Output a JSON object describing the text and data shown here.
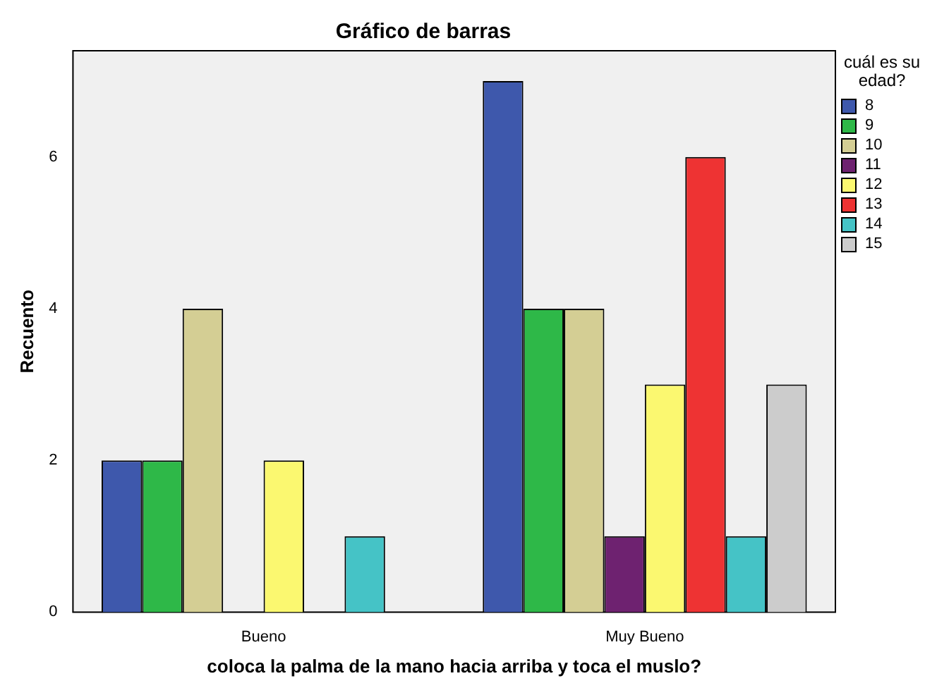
{
  "chart_data": {
    "type": "bar",
    "title": "Gráfico de barras",
    "xlabel": "coloca la palma de la mano hacia arriba y toca el muslo?",
    "ylabel": "Recuento",
    "legend_title": "cuál es su edad?",
    "legend": "right",
    "categories": [
      "Bueno",
      "Muy Bueno"
    ],
    "series": [
      {
        "name": "8",
        "color": "#3e58ac",
        "values": [
          2,
          7
        ]
      },
      {
        "name": "9",
        "color": "#2eb848",
        "values": [
          2,
          4
        ]
      },
      {
        "name": "10",
        "color": "#d4ce94",
        "values": [
          4,
          4
        ]
      },
      {
        "name": "11",
        "color": "#6e2270",
        "values": [
          null,
          1
        ]
      },
      {
        "name": "12",
        "color": "#fbf870",
        "values": [
          2,
          3
        ]
      },
      {
        "name": "13",
        "color": "#ee3333",
        "values": [
          null,
          6
        ]
      },
      {
        "name": "14",
        "color": "#45c3c6",
        "values": [
          1,
          1
        ]
      },
      {
        "name": "15",
        "color": "#cccccc",
        "values": [
          null,
          3
        ]
      }
    ],
    "ylim": [
      0,
      7.4
    ],
    "yticks": [
      0,
      2,
      4,
      6
    ],
    "grid": false
  }
}
